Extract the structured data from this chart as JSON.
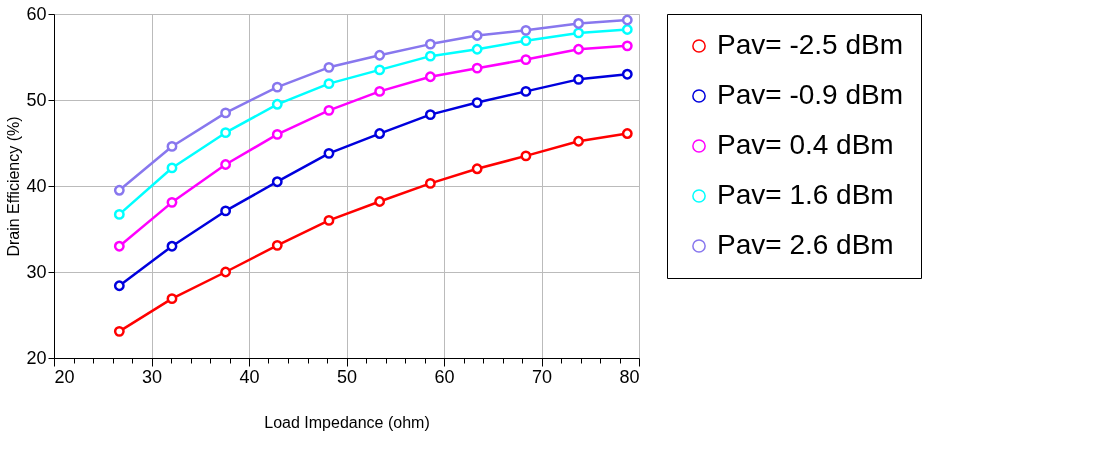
{
  "chart_data": {
    "type": "line",
    "xlabel": "Load Impedance (ohm)",
    "ylabel": "Drain Efficiency (%)",
    "x": [
      26.7,
      32.1,
      37.6,
      42.9,
      48.2,
      53.4,
      58.6,
      63.4,
      68.4,
      73.8,
      78.8
    ],
    "series": [
      {
        "name": "Pav= -2.5 dBm",
        "color": "#ff0000",
        "values": [
          23.1,
          26.9,
          30.0,
          33.1,
          36.0,
          38.2,
          40.3,
          42.0,
          43.5,
          45.2,
          46.1
        ]
      },
      {
        "name": "Pav= -0.9 dBm",
        "color": "#0000dd",
        "values": [
          28.4,
          33.0,
          37.1,
          40.5,
          43.8,
          46.1,
          48.3,
          49.7,
          51.0,
          52.4,
          53.0
        ]
      },
      {
        "name": "Pav= 0.4 dBm",
        "color": "#ff00ff",
        "values": [
          33.0,
          38.1,
          42.5,
          46.0,
          48.8,
          51.0,
          52.7,
          53.7,
          54.7,
          55.9,
          56.3
        ]
      },
      {
        "name": "Pav= 1.6 dBm",
        "color": "#00ffff",
        "values": [
          36.7,
          42.1,
          46.2,
          49.5,
          51.9,
          53.5,
          55.1,
          55.9,
          56.9,
          57.8,
          58.2
        ]
      },
      {
        "name": "Pav= 2.6 dBm",
        "color": "#8877ee",
        "values": [
          39.5,
          44.6,
          48.5,
          51.5,
          53.8,
          55.2,
          56.5,
          57.5,
          58.1,
          58.9,
          59.3
        ]
      }
    ],
    "xlim": [
      20,
      80
    ],
    "xticks": [
      20,
      {
        "value": 22,
        "label": null
      },
      {
        "value": 24,
        "label": null
      },
      {
        "value": 26,
        "label": null
      },
      {
        "value": 28,
        "label": null
      },
      30,
      {
        "value": 32,
        "label": null
      },
      {
        "value": 34,
        "label": null
      },
      {
        "value": 36,
        "label": null
      },
      {
        "value": 38,
        "label": null
      },
      40,
      {
        "value": 42,
        "label": null
      },
      {
        "value": 44,
        "label": null
      },
      {
        "value": 46,
        "label": null
      },
      {
        "value": 48,
        "label": null
      },
      50,
      {
        "value": 52,
        "label": null
      },
      {
        "value": 54,
        "label": null
      },
      {
        "value": 56,
        "label": null
      },
      {
        "value": 58,
        "label": null
      },
      60,
      {
        "value": 62,
        "label": null
      },
      {
        "value": 64,
        "label": null
      },
      {
        "value": 66,
        "label": null
      },
      {
        "value": 68,
        "label": null
      },
      70,
      {
        "value": 72,
        "label": null
      },
      {
        "value": 74,
        "label": null
      },
      {
        "value": 76,
        "label": null
      },
      {
        "value": 78,
        "label": null
      },
      80
    ],
    "ylim": [
      20,
      60
    ],
    "yticks": [
      20,
      30,
      40,
      50,
      60
    ],
    "grid": true,
    "legend": "right",
    "marker": "circle",
    "line_style": "solid"
  }
}
